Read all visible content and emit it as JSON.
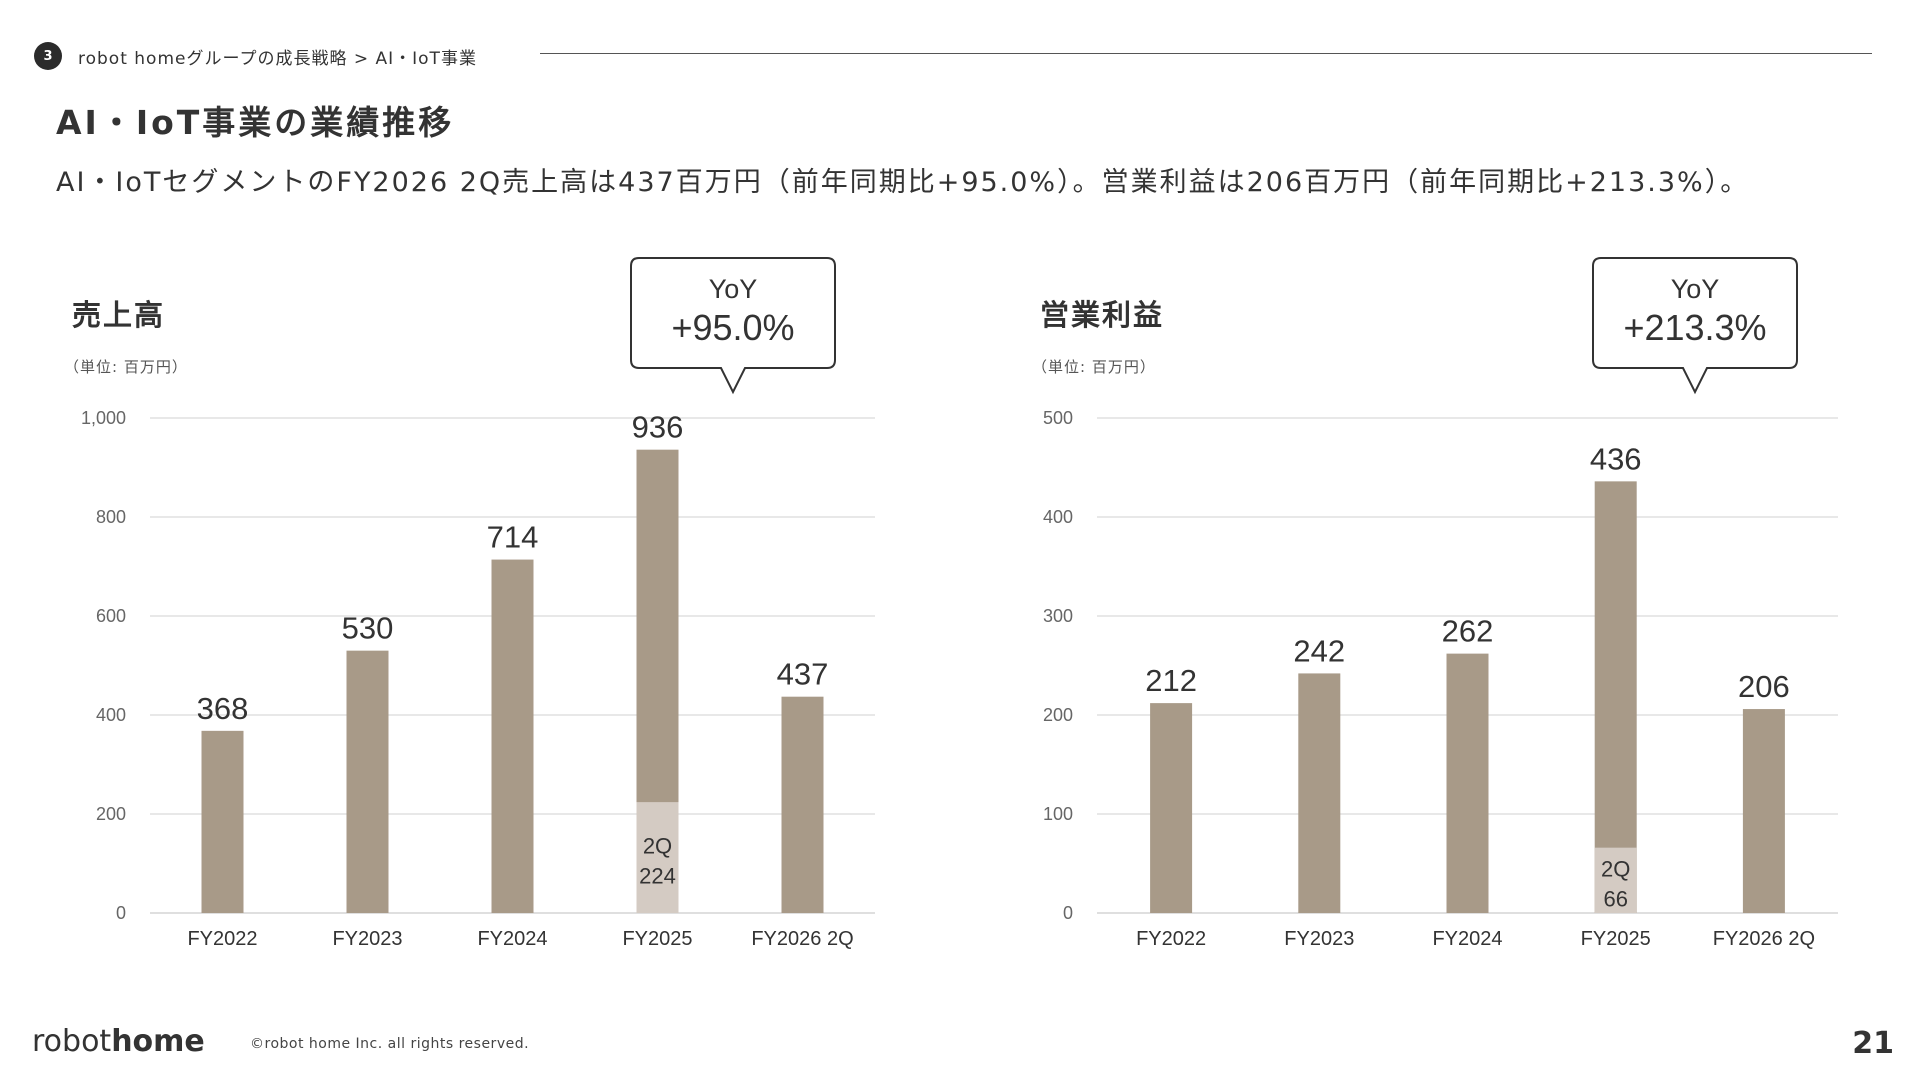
{
  "header": {
    "section_number": "3",
    "breadcrumb": "robot homeグループの成長戦略 > AI・IoT事業",
    "title": "AI・IoT事業の業績推移",
    "lead": "AI・IoTセグメントのFY2026 2Q売上高は437百万円（前年同期比+95.0%）。営業利益は206百万円（前年同期比+213.3%）。"
  },
  "footer": {
    "logo_part1": "robot",
    "logo_part2": "home",
    "copyright": "©robot home Inc. all rights reserved.",
    "page_number": "21"
  },
  "colors": {
    "bar": "#a89a88",
    "bar_2q": "#d4cbc3",
    "grid": "#d9d9d9",
    "text": "#333333"
  },
  "chart_data": [
    {
      "type": "bar",
      "title": "売上高",
      "unit": "（単位: 百万円）",
      "categories": [
        "FY2022",
        "FY2023",
        "FY2024",
        "FY2025",
        "FY2026 2Q"
      ],
      "values": [
        368,
        530,
        714,
        936,
        437
      ],
      "value_labels": [
        "368",
        "530",
        "714",
        "936",
        "437"
      ],
      "ylim": [
        0,
        1000
      ],
      "yticks": [
        0,
        200,
        400,
        600,
        800,
        1000
      ],
      "ytick_labels": [
        "0",
        "200",
        "400",
        "600",
        "800",
        "1,000"
      ],
      "highlight": {
        "category": "FY2025",
        "value": 224,
        "label_top": "2Q",
        "label_bottom": "224"
      },
      "callout": {
        "label": "YoY",
        "value": "+95.0%"
      },
      "grid": true
    },
    {
      "type": "bar",
      "title": "営業利益",
      "unit": "（単位: 百万円）",
      "categories": [
        "FY2022",
        "FY2023",
        "FY2024",
        "FY2025",
        "FY2026 2Q"
      ],
      "values": [
        212,
        242,
        262,
        436,
        206
      ],
      "value_labels": [
        "212",
        "242",
        "262",
        "436",
        "206"
      ],
      "ylim": [
        0,
        500
      ],
      "yticks": [
        0,
        100,
        200,
        300,
        400,
        500
      ],
      "ytick_labels": [
        "0",
        "100",
        "200",
        "300",
        "400",
        "500"
      ],
      "highlight": {
        "category": "FY2025",
        "value": 66,
        "label_top": "2Q",
        "label_bottom": "66"
      },
      "callout": {
        "label": "YoY",
        "value": "+213.3%"
      },
      "grid": true
    }
  ]
}
